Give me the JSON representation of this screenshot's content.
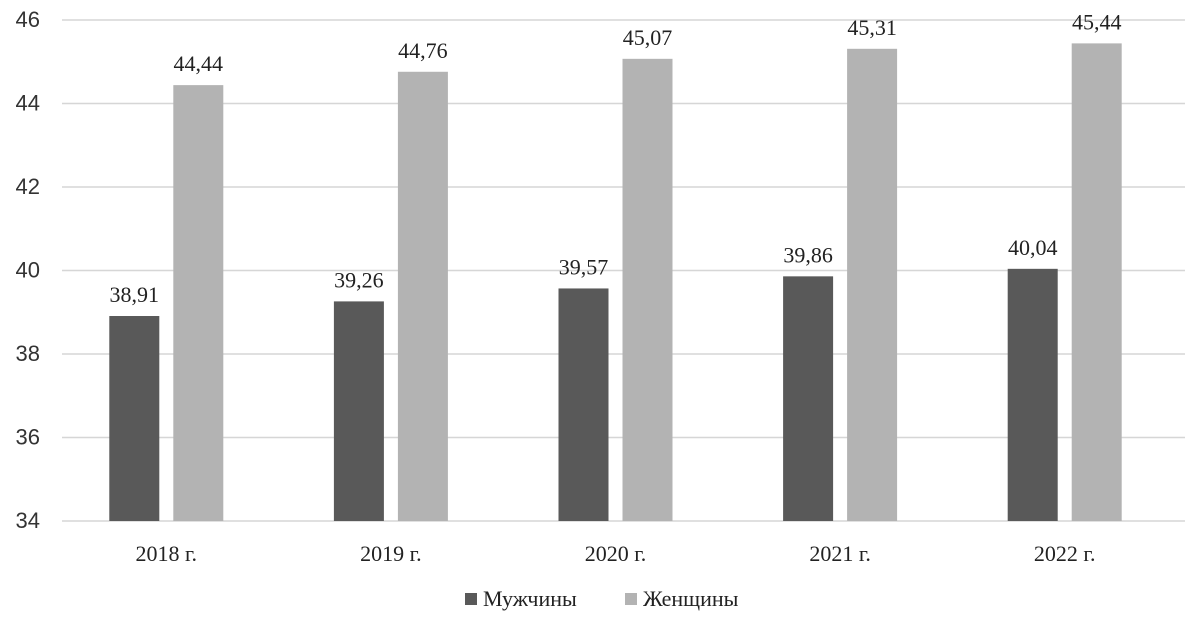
{
  "chart_data": {
    "type": "bar",
    "categories": [
      "2018 г.",
      "2019 г.",
      "2020 г.",
      "2021 г.",
      "2022 г."
    ],
    "series": [
      {
        "name": "Мужчины",
        "color": "#595959",
        "values": [
          38.91,
          39.26,
          39.57,
          39.86,
          40.04
        ],
        "labels": [
          "38,91",
          "39,26",
          "39,57",
          "39,86",
          "40,04"
        ]
      },
      {
        "name": "Женщины",
        "color": "#b3b3b3",
        "values": [
          44.44,
          44.76,
          45.07,
          45.31,
          45.44
        ],
        "labels": [
          "44,44",
          "44,76",
          "45,07",
          "45,31",
          "45,44"
        ]
      }
    ],
    "yticks": [
      "34",
      "36",
      "38",
      "40",
      "42",
      "44",
      "46"
    ],
    "ylim": [
      34,
      46
    ],
    "grid": true,
    "legend": "bottom"
  }
}
